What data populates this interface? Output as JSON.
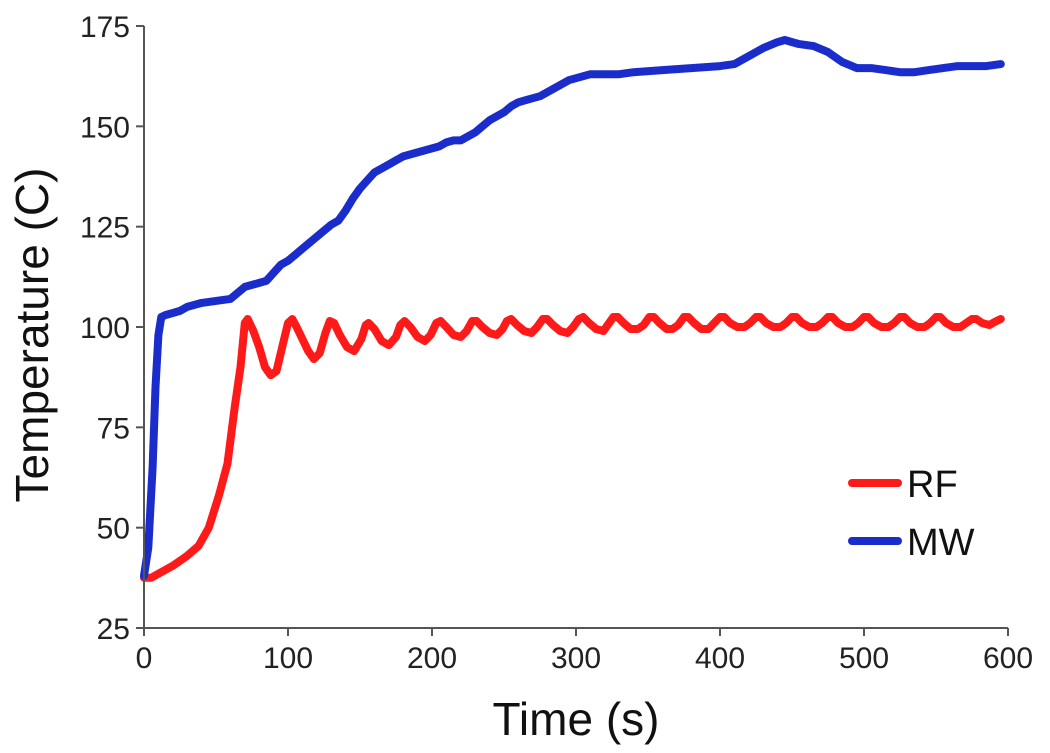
{
  "chart_data": {
    "type": "line",
    "title": "",
    "xlabel": "Time (s)",
    "ylabel": "Temperature (C)",
    "xlim": [
      0,
      600
    ],
    "ylim": [
      25,
      175
    ],
    "xticks": [
      0,
      100,
      200,
      300,
      400,
      500,
      600
    ],
    "yticks": [
      25,
      50,
      75,
      100,
      125,
      150,
      175
    ],
    "grid": false,
    "legend_position": "bottom-right",
    "series": [
      {
        "name": "RF",
        "color": "#ff1a1a",
        "points": [
          [
            0,
            37.5
          ],
          [
            5,
            37.5
          ],
          [
            10,
            38.5
          ],
          [
            20,
            40.5
          ],
          [
            30,
            43
          ],
          [
            38,
            45.5
          ],
          [
            45,
            50
          ],
          [
            52,
            58
          ],
          [
            58,
            66
          ],
          [
            63,
            80
          ],
          [
            67,
            90
          ],
          [
            70,
            101
          ],
          [
            72,
            102
          ],
          [
            76,
            99
          ],
          [
            80,
            95
          ],
          [
            84,
            90
          ],
          [
            88,
            88
          ],
          [
            92,
            89
          ],
          [
            96,
            95
          ],
          [
            100,
            101
          ],
          [
            103,
            102
          ],
          [
            106,
            100
          ],
          [
            110,
            97
          ],
          [
            114,
            94
          ],
          [
            118,
            92
          ],
          [
            122,
            93.5
          ],
          [
            126,
            98.5
          ],
          [
            129,
            101.5
          ],
          [
            132,
            101
          ],
          [
            136,
            98
          ],
          [
            141,
            95
          ],
          [
            146,
            94
          ],
          [
            151,
            97
          ],
          [
            154,
            100.5
          ],
          [
            156,
            101
          ],
          [
            160,
            99.5
          ],
          [
            165,
            96.5
          ],
          [
            170,
            95.5
          ],
          [
            175,
            97.5
          ],
          [
            178,
            100.5
          ],
          [
            181,
            101.5
          ],
          [
            185,
            100
          ],
          [
            190,
            97.5
          ],
          [
            195,
            96.5
          ],
          [
            199,
            98
          ],
          [
            203,
            101
          ],
          [
            206,
            101.5
          ],
          [
            210,
            100
          ],
          [
            215,
            98
          ],
          [
            220,
            97.5
          ],
          [
            224,
            99
          ],
          [
            228,
            101.5
          ],
          [
            231,
            101.5
          ],
          [
            235,
            100
          ],
          [
            240,
            98.5
          ],
          [
            245,
            98
          ],
          [
            249,
            99.5
          ],
          [
            252,
            101.5
          ],
          [
            255,
            102
          ],
          [
            259,
            100.5
          ],
          [
            264,
            99
          ],
          [
            269,
            98.5
          ],
          [
            273,
            100
          ],
          [
            277,
            102
          ],
          [
            280,
            102
          ],
          [
            284,
            100.5
          ],
          [
            289,
            99
          ],
          [
            294,
            98.5
          ],
          [
            298,
            100
          ],
          [
            302,
            102
          ],
          [
            305,
            102.5
          ],
          [
            309,
            101
          ],
          [
            314,
            99.5
          ],
          [
            319,
            99
          ],
          [
            322,
            100.5
          ],
          [
            326,
            102.5
          ],
          [
            329,
            102.5
          ],
          [
            333,
            101
          ],
          [
            338,
            99.5
          ],
          [
            343,
            99.5
          ],
          [
            347,
            100.5
          ],
          [
            351,
            102.5
          ],
          [
            354,
            102.5
          ],
          [
            358,
            101
          ],
          [
            363,
            99.5
          ],
          [
            367,
            99.5
          ],
          [
            371,
            100.5
          ],
          [
            375,
            102.5
          ],
          [
            378,
            102.5
          ],
          [
            382,
            101
          ],
          [
            387,
            99.5
          ],
          [
            392,
            99.5
          ],
          [
            396,
            101
          ],
          [
            400,
            102.5
          ],
          [
            403,
            102.5
          ],
          [
            407,
            101
          ],
          [
            412,
            100
          ],
          [
            417,
            100
          ],
          [
            421,
            101
          ],
          [
            425,
            102.5
          ],
          [
            428,
            102.5
          ],
          [
            432,
            101
          ],
          [
            437,
            100
          ],
          [
            442,
            100
          ],
          [
            446,
            101
          ],
          [
            450,
            102.5
          ],
          [
            453,
            102.5
          ],
          [
            457,
            101
          ],
          [
            462,
            100
          ],
          [
            467,
            100
          ],
          [
            471,
            101
          ],
          [
            475,
            102.5
          ],
          [
            478,
            102.5
          ],
          [
            482,
            101
          ],
          [
            487,
            100
          ],
          [
            492,
            100
          ],
          [
            496,
            101
          ],
          [
            500,
            102.5
          ],
          [
            503,
            102.5
          ],
          [
            507,
            101
          ],
          [
            512,
            100
          ],
          [
            517,
            100
          ],
          [
            521,
            101
          ],
          [
            525,
            102.5
          ],
          [
            528,
            102.5
          ],
          [
            532,
            101
          ],
          [
            537,
            100
          ],
          [
            542,
            100
          ],
          [
            546,
            101
          ],
          [
            550,
            102.5
          ],
          [
            553,
            102.5
          ],
          [
            557,
            101
          ],
          [
            562,
            100
          ],
          [
            567,
            100
          ],
          [
            571,
            101
          ],
          [
            575,
            102
          ],
          [
            578,
            102
          ],
          [
            582,
            101
          ],
          [
            587,
            100.5
          ],
          [
            592,
            101.5
          ],
          [
            595,
            102
          ]
        ]
      },
      {
        "name": "MW",
        "color": "#1a2ccc",
        "points": [
          [
            0,
            38
          ],
          [
            3,
            45
          ],
          [
            6,
            65
          ],
          [
            8,
            85
          ],
          [
            10,
            98
          ],
          [
            12,
            102.5
          ],
          [
            15,
            103
          ],
          [
            20,
            103.5
          ],
          [
            25,
            104
          ],
          [
            30,
            105
          ],
          [
            35,
            105.5
          ],
          [
            40,
            106
          ],
          [
            50,
            106.5
          ],
          [
            60,
            107
          ],
          [
            65,
            108.5
          ],
          [
            70,
            110
          ],
          [
            75,
            110.5
          ],
          [
            80,
            111
          ],
          [
            85,
            111.5
          ],
          [
            90,
            113.5
          ],
          [
            95,
            115.5
          ],
          [
            100,
            116.5
          ],
          [
            105,
            118
          ],
          [
            110,
            119.5
          ],
          [
            115,
            121
          ],
          [
            120,
            122.5
          ],
          [
            125,
            124
          ],
          [
            130,
            125.5
          ],
          [
            135,
            126.5
          ],
          [
            140,
            129
          ],
          [
            145,
            132
          ],
          [
            150,
            134.5
          ],
          [
            155,
            136.5
          ],
          [
            160,
            138.5
          ],
          [
            165,
            139.5
          ],
          [
            170,
            140.5
          ],
          [
            175,
            141.5
          ],
          [
            180,
            142.5
          ],
          [
            185,
            143
          ],
          [
            190,
            143.5
          ],
          [
            195,
            144
          ],
          [
            200,
            144.5
          ],
          [
            205,
            145
          ],
          [
            210,
            146
          ],
          [
            215,
            146.5
          ],
          [
            220,
            146.5
          ],
          [
            225,
            147.5
          ],
          [
            230,
            148.5
          ],
          [
            235,
            150
          ],
          [
            240,
            151.5
          ],
          [
            245,
            152.5
          ],
          [
            250,
            153.5
          ],
          [
            255,
            155
          ],
          [
            260,
            156
          ],
          [
            265,
            156.5
          ],
          [
            270,
            157
          ],
          [
            275,
            157.5
          ],
          [
            280,
            158.5
          ],
          [
            285,
            159.5
          ],
          [
            290,
            160.5
          ],
          [
            295,
            161.5
          ],
          [
            300,
            162
          ],
          [
            305,
            162.5
          ],
          [
            310,
            163
          ],
          [
            320,
            163
          ],
          [
            330,
            163
          ],
          [
            340,
            163.5
          ],
          [
            360,
            164
          ],
          [
            380,
            164.5
          ],
          [
            400,
            165
          ],
          [
            410,
            165.5
          ],
          [
            420,
            167.5
          ],
          [
            430,
            169.5
          ],
          [
            440,
            171
          ],
          [
            445,
            171.5
          ],
          [
            450,
            171
          ],
          [
            455,
            170.5
          ],
          [
            465,
            170
          ],
          [
            475,
            168.5
          ],
          [
            485,
            166
          ],
          [
            495,
            164.5
          ],
          [
            505,
            164.5
          ],
          [
            515,
            164
          ],
          [
            525,
            163.5
          ],
          [
            535,
            163.5
          ],
          [
            545,
            164
          ],
          [
            555,
            164.5
          ],
          [
            565,
            165
          ],
          [
            575,
            165
          ],
          [
            585,
            165
          ],
          [
            595,
            165.5
          ]
        ]
      }
    ]
  }
}
